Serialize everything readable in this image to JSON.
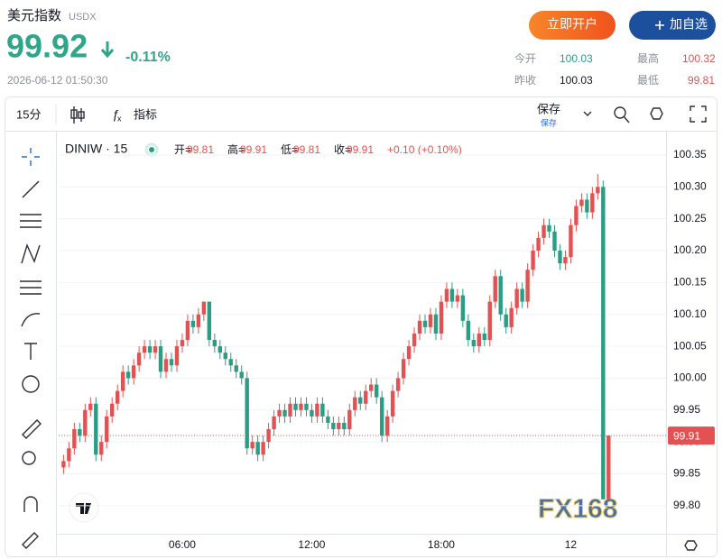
{
  "header": {
    "title": "美元指数",
    "code": "USDX",
    "price": "99.92",
    "change": "-0.11%",
    "timestamp": "2026-06-12 01:50:30",
    "buttons": [
      "立即开户",
      "加自选"
    ],
    "stats": [
      {
        "label": "今开",
        "value": "100.03"
      },
      {
        "label": "最高",
        "value": "100.32"
      },
      {
        "label": "昨收",
        "value": "100.03"
      },
      {
        "label": "最低",
        "value": "99.81"
      }
    ]
  },
  "toolbar": {
    "interval": "15分",
    "indicators": "指标",
    "save": "保存",
    "save_sub": "保存"
  },
  "chart_data": {
    "type": "candlestick",
    "symbol_label": "DINIW · 15",
    "legend_ohlc": [
      {
        "label": "开=",
        "value": "99.81"
      },
      {
        "label": "高=",
        "value": "99.91"
      },
      {
        "label": "低=",
        "value": "99.81"
      },
      {
        "label": "收=",
        "value": "99.91"
      }
    ],
    "legend_change": "+0.10 (+0.10%)",
    "categories": [
      null,
      null,
      null,
      null,
      null,
      null,
      null,
      null,
      null,
      null,
      null,
      null,
      null,
      null,
      null,
      null,
      null,
      null,
      null,
      null,
      null,
      null,
      "06:00",
      null,
      null,
      null,
      null,
      null,
      null,
      null,
      null,
      null,
      null,
      null,
      null,
      null,
      null,
      null,
      null,
      null,
      null,
      null,
      null,
      null,
      null,
      null,
      "12:00",
      null,
      null,
      null,
      null,
      null,
      null,
      null,
      null,
      null,
      null,
      null,
      null,
      null,
      null,
      null,
      null,
      null,
      null,
      null,
      null,
      null,
      null,
      null,
      "18:00",
      null,
      null,
      null,
      null,
      null,
      null,
      null,
      null,
      null,
      null,
      null,
      null,
      null,
      null,
      null,
      null,
      null,
      null,
      null,
      null,
      null,
      null,
      null,
      "12",
      null,
      null,
      null,
      null,
      null,
      null,
      null
    ],
    "open": [
      99.86,
      99.87,
      99.89,
      99.92,
      99.91,
      99.95,
      99.96,
      99.88,
      99.9,
      99.94,
      99.96,
      99.98,
      100.01,
      100.0,
      100.02,
      100.04,
      100.05,
      100.04,
      100.05,
      100.01,
      100.03,
      100.02,
      100.05,
      100.06,
      100.09,
      100.08,
      100.1,
      100.12,
      100.06,
      100.05,
      100.04,
      100.03,
      100.02,
      100.01,
      100.0,
      99.89,
      99.9,
      99.88,
      99.9,
      99.92,
      99.94,
      99.95,
      99.94,
      99.96,
      99.95,
      99.96,
      99.95,
      99.94,
      99.96,
      99.94,
      99.93,
      99.92,
      99.93,
      99.92,
      99.95,
      99.97,
      99.96,
      99.98,
      99.99,
      99.97,
      99.91,
      99.94,
      99.98,
      100.0,
      100.03,
      100.05,
      100.07,
      100.09,
      100.08,
      100.1,
      100.07,
      100.12,
      100.14,
      100.12,
      100.13,
      100.09,
      100.06,
      100.05,
      100.07,
      100.06,
      100.12,
      100.16,
      100.1,
      100.08,
      100.11,
      100.14,
      100.12,
      100.17,
      100.2,
      100.22,
      100.24,
      100.23,
      100.2,
      100.18,
      100.19,
      100.24,
      100.27,
      100.28,
      100.26,
      100.29,
      100.3,
      99.81
    ],
    "high": [
      99.88,
      99.9,
      99.93,
      99.93,
      99.96,
      99.97,
      99.97,
      99.91,
      99.95,
      99.97,
      99.99,
      100.02,
      100.02,
      100.03,
      100.05,
      100.06,
      100.06,
      100.06,
      100.06,
      100.04,
      100.04,
      100.06,
      100.07,
      100.1,
      100.1,
      100.11,
      100.12,
      100.12,
      100.07,
      100.06,
      100.05,
      100.04,
      100.03,
      100.02,
      100.01,
      99.91,
      99.91,
      99.91,
      99.93,
      99.95,
      99.96,
      99.96,
      99.97,
      99.97,
      99.97,
      99.97,
      99.96,
      99.97,
      99.97,
      99.95,
      99.94,
      99.94,
      99.94,
      99.96,
      99.98,
      99.98,
      99.99,
      100.0,
      100.0,
      99.98,
      99.95,
      99.99,
      100.01,
      100.04,
      100.06,
      100.08,
      100.1,
      100.1,
      100.11,
      100.11,
      100.13,
      100.15,
      100.15,
      100.14,
      100.14,
      100.1,
      100.07,
      100.08,
      100.08,
      100.13,
      100.17,
      100.17,
      100.11,
      100.12,
      100.15,
      100.15,
      100.18,
      100.21,
      100.23,
      100.25,
      100.25,
      100.24,
      100.21,
      100.2,
      100.25,
      100.28,
      100.29,
      100.29,
      100.3,
      100.32,
      100.31,
      99.91
    ],
    "low": [
      99.85,
      99.86,
      99.88,
      99.9,
      99.9,
      99.94,
      99.87,
      99.87,
      99.89,
      99.93,
      99.95,
      99.97,
      99.99,
      99.99,
      100.01,
      100.03,
      100.03,
      100.03,
      100.0,
      100.0,
      100.01,
      100.01,
      100.04,
      100.05,
      100.07,
      100.07,
      100.09,
      100.05,
      100.04,
      100.03,
      100.02,
      100.01,
      100.0,
      99.99,
      99.88,
      99.88,
      99.87,
      99.87,
      99.89,
      99.91,
      99.93,
      99.93,
      99.93,
      99.94,
      99.94,
      99.94,
      99.93,
      99.93,
      99.93,
      99.92,
      99.91,
      99.91,
      99.91,
      99.91,
      99.94,
      99.95,
      99.95,
      99.97,
      99.96,
      99.9,
      99.9,
      99.93,
      99.97,
      99.99,
      100.02,
      100.04,
      100.06,
      100.07,
      100.07,
      100.06,
      100.06,
      100.11,
      100.11,
      100.11,
      100.08,
      100.05,
      100.04,
      100.04,
      100.05,
      100.05,
      100.11,
      100.09,
      100.07,
      100.07,
      100.1,
      100.11,
      100.11,
      100.16,
      100.19,
      100.21,
      100.22,
      100.19,
      100.17,
      100.17,
      100.18,
      100.23,
      100.26,
      100.25,
      100.25,
      100.28,
      99.81,
      99.81
    ],
    "close": [
      99.87,
      99.89,
      99.92,
      99.91,
      99.95,
      99.96,
      99.88,
      99.9,
      99.94,
      99.96,
      99.98,
      100.01,
      100.0,
      100.02,
      100.04,
      100.05,
      100.04,
      100.05,
      100.01,
      100.03,
      100.02,
      100.05,
      100.06,
      100.09,
      100.08,
      100.1,
      100.12,
      100.06,
      100.05,
      100.04,
      100.03,
      100.02,
      100.01,
      100.0,
      99.89,
      99.9,
      99.88,
      99.9,
      99.92,
      99.94,
      99.95,
      99.94,
      99.96,
      99.95,
      99.96,
      99.95,
      99.94,
      99.96,
      99.94,
      99.93,
      99.92,
      99.93,
      99.92,
      99.95,
      99.97,
      99.96,
      99.98,
      99.99,
      99.97,
      99.91,
      99.94,
      99.98,
      100.0,
      100.03,
      100.05,
      100.07,
      100.09,
      100.08,
      100.1,
      100.07,
      100.12,
      100.14,
      100.12,
      100.13,
      100.09,
      100.06,
      100.05,
      100.07,
      100.06,
      100.12,
      100.16,
      100.1,
      100.08,
      100.11,
      100.14,
      100.12,
      100.17,
      100.2,
      100.22,
      100.24,
      100.23,
      100.2,
      100.18,
      100.19,
      100.24,
      100.27,
      100.28,
      100.26,
      100.29,
      100.3,
      99.81,
      99.91
    ],
    "ylim": [
      99.756,
      100.381
    ],
    "yticks": [
      {
        "value": 99.8,
        "label": "99.80"
      },
      99.85,
      {
        "value": 99.9,
        "label": "99.90"
      },
      99.95,
      {
        "value": 100,
        "label": "100.00"
      },
      100.05,
      {
        "value": 100.1,
        "label": "100.10"
      },
      100.15,
      {
        "value": 100.2,
        "label": "100.20"
      },
      100.25,
      {
        "value": 100.3,
        "label": "100.30"
      },
      100.35
    ],
    "grid": true,
    "up_color": "#e25252",
    "down_color": "#2a9d84",
    "last_price": 99.91,
    "watermark": "FX168"
  }
}
